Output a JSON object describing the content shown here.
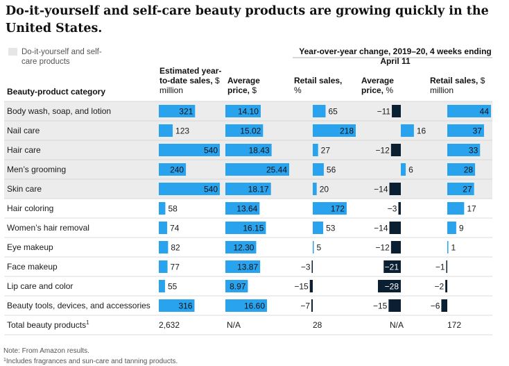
{
  "title": "Do-it-yourself and self-care beauty products are growing quickly in the United States.",
  "legend": {
    "label": "Do-it-yourself and self-care products",
    "color": "#e6e6e6"
  },
  "group_header": "Year-over-year change, 2019–20, 4 weeks ending April 11",
  "columns": {
    "category": {
      "bold": "Beauty-product category",
      "rest": ""
    },
    "sales": {
      "bold": "Estimated year-to-date sales,",
      "rest": " $ million"
    },
    "price": {
      "bold": "Average price,",
      "rest": " $"
    },
    "retail_pct": {
      "bold": "Retail sales,",
      "rest": " %"
    },
    "avg_price_pct": {
      "bold": "Average price,",
      "rest": " %"
    },
    "retail_musd": {
      "bold": "Retail sales,",
      "rest": " $ million"
    }
  },
  "colors": {
    "positive": "#2aa3ef",
    "negative": "#0b1f33",
    "highlight": "#ececec",
    "rule": "#cfcfcf"
  },
  "chart_data": {
    "type": "table",
    "categories": [
      "Body wash, soap, and lotion",
      "Nail care",
      "Hair care",
      "Men’s grooming",
      "Skin care",
      "Hair coloring",
      "Women’s hair removal",
      "Eye makeup",
      "Face makeup",
      "Lip care and color",
      "Beauty tools, devices, and accessories"
    ],
    "diy_highlight": [
      true,
      true,
      true,
      true,
      true,
      false,
      false,
      false,
      false,
      false,
      false
    ],
    "series": [
      {
        "name": "Estimated year-to-date sales, $ million",
        "values": [
          321,
          123,
          540,
          240,
          540,
          58,
          74,
          82,
          77,
          55,
          316
        ],
        "labels": [
          "321",
          "123",
          "540",
          "240",
          "540",
          "58",
          "74",
          "82",
          "77",
          "55",
          "316"
        ]
      },
      {
        "name": "Average price, $",
        "values": [
          14.1,
          15.02,
          18.43,
          25.44,
          18.17,
          13.64,
          16.15,
          12.3,
          13.87,
          8.97,
          16.6
        ],
        "labels": [
          "14.10",
          "15.02",
          "18.43",
          "25.44",
          "18.17",
          "13.64",
          "16.15",
          "12.30",
          "13.87",
          "8.97",
          "16.60"
        ]
      },
      {
        "name": "Retail sales, %",
        "values": [
          65,
          218,
          27,
          56,
          20,
          172,
          53,
          5,
          -3,
          -15,
          -7
        ],
        "labels": [
          "65",
          "218",
          "27",
          "56",
          "20",
          "172",
          "53",
          "5",
          "−3",
          "−15",
          "−7"
        ]
      },
      {
        "name": "Average price, %",
        "values": [
          -11,
          16,
          -12,
          6,
          -14,
          -3,
          -14,
          -12,
          -21,
          -28,
          -15
        ],
        "labels": [
          "−11",
          "16",
          "−12",
          "6",
          "−14",
          "−3",
          "−14",
          "−12",
          "−21",
          "−28",
          "−15"
        ]
      },
      {
        "name": "Retail sales, $ million",
        "values": [
          44,
          37,
          33,
          28,
          27,
          17,
          9,
          1,
          -1,
          -2,
          -6
        ],
        "labels": [
          "44",
          "37",
          "33",
          "28",
          "27",
          "17",
          "9",
          "1",
          "−1",
          "−2",
          "−6"
        ]
      }
    ],
    "total": {
      "label": "Total beauty products",
      "footnote_marker": "1",
      "values": [
        "2,632",
        "N/A",
        "28",
        "N/A",
        "172"
      ]
    }
  },
  "notes": {
    "note": "Note: From Amazon results.",
    "footnote_marker": "1",
    "footnote": "Includes fragrances and sun-care and tanning products."
  }
}
